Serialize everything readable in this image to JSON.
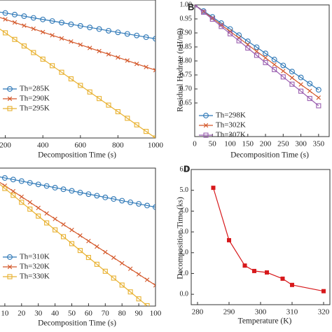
{
  "chart_data": [
    {
      "type": "line",
      "xlabel": "Decomposition Time (s)",
      "x": [
        0,
        50,
        100,
        150,
        200,
        250,
        300,
        350,
        400,
        450,
        500,
        550,
        600,
        650,
        700,
        750,
        800,
        850,
        900,
        950,
        1000
      ],
      "xlim": [
        0,
        1000
      ],
      "ylim": [
        0,
        1.05
      ],
      "xticks": [
        200,
        400,
        600,
        800,
        1000
      ],
      "series": [
        {
          "name": "Th=285K",
          "color": "#2e78b7",
          "values": [
            1,
            0.988,
            0.976,
            0.963,
            0.951,
            0.939,
            0.927,
            0.914,
            0.902,
            0.89,
            0.878,
            0.865,
            0.853,
            0.841,
            0.829,
            0.816,
            0.804,
            0.792,
            0.78,
            0.767,
            0.755
          ]
        },
        {
          "name": "Th=290K",
          "color": "#d4582a",
          "values": [
            1,
            0.976,
            0.952,
            0.927,
            0.903,
            0.879,
            0.855,
            0.831,
            0.806,
            0.782,
            0.758,
            0.734,
            0.71,
            0.685,
            0.661,
            0.637,
            0.613,
            0.589,
            0.564,
            0.54,
            0.516
          ]
        },
        {
          "name": "Th=295K",
          "color": "#e8b130",
          "values": [
            1,
            0.95,
            0.9,
            0.85,
            0.8,
            0.75,
            0.7,
            0.65,
            0.6,
            0.55,
            0.5,
            0.45,
            0.4,
            0.35,
            0.3,
            0.25,
            0.2,
            0.15,
            0.1,
            0.05,
            0
          ]
        }
      ]
    },
    {
      "type": "line",
      "panel_label": "B",
      "xlabel": "Decomposition Time (s)",
      "ylabel": "Residual Hydrate (nH/n0)",
      "x": [
        0,
        25,
        50,
        75,
        100,
        125,
        150,
        175,
        200,
        225,
        250,
        275,
        300,
        325,
        350
      ],
      "xlim": [
        0,
        380
      ],
      "ylim": [
        0.53,
        1.0
      ],
      "xticks": [
        0,
        50,
        100,
        150,
        200,
        250,
        300,
        350
      ],
      "yticks": [
        {
          "value": 0.65,
          "label": "0.65"
        },
        {
          "value": 0.7,
          "label": "0.70"
        },
        {
          "value": 0.75,
          "label": "0.75"
        },
        {
          "value": 0.8,
          "label": "0.80"
        },
        {
          "value": 0.85,
          "label": "0.85"
        },
        {
          "value": 0.9,
          "label": "0.90"
        },
        {
          "value": 0.95,
          "label": "0.95"
        },
        {
          "value": 1.0,
          "label": "1.00"
        }
      ],
      "series": [
        {
          "name": "Th=298K",
          "color": "#2e78b7",
          "values": [
            1,
            0.978,
            0.957,
            0.935,
            0.914,
            0.892,
            0.87,
            0.849,
            0.827,
            0.805,
            0.784,
            0.762,
            0.741,
            0.719,
            0.697
          ]
        },
        {
          "name": "Th=302K",
          "color": "#d4582a",
          "values": [
            1,
            0.976,
            0.953,
            0.929,
            0.905,
            0.882,
            0.858,
            0.834,
            0.811,
            0.787,
            0.764,
            0.74,
            0.716,
            0.693,
            0.669
          ]
        },
        {
          "name": "Th=307K",
          "color": "#9a5fb0",
          "values": [
            1,
            0.974,
            0.949,
            0.923,
            0.897,
            0.872,
            0.846,
            0.82,
            0.794,
            0.769,
            0.743,
            0.717,
            0.692,
            0.666,
            0.64
          ]
        }
      ]
    },
    {
      "type": "line",
      "xlabel": "Decomposition Time (s)",
      "x": [
        0,
        5,
        10,
        15,
        20,
        25,
        30,
        35,
        40,
        45,
        50,
        55,
        60,
        65,
        70,
        75,
        80,
        85,
        90,
        95,
        100
      ],
      "xlim": [
        0,
        100
      ],
      "ylim": [
        0,
        1.05
      ],
      "xticks": [
        10,
        20,
        30,
        40,
        50,
        60,
        70,
        80,
        90,
        100
      ],
      "series": [
        {
          "name": "Th=310K",
          "color": "#2e78b7",
          "values": [
            1,
            0.988,
            0.975,
            0.963,
            0.951,
            0.938,
            0.926,
            0.914,
            0.901,
            0.889,
            0.877,
            0.864,
            0.852,
            0.84,
            0.827,
            0.815,
            0.802,
            0.79,
            0.778,
            0.765,
            0.753
          ]
        },
        {
          "name": "Th=320K",
          "color": "#d4582a",
          "values": [
            1,
            0.958,
            0.916,
            0.874,
            0.832,
            0.79,
            0.747,
            0.705,
            0.663,
            0.621,
            0.579,
            0.537,
            0.495,
            0.453,
            0.411,
            0.369,
            0.326,
            0.284,
            0.242,
            0.2,
            0.158
          ]
        },
        {
          "name": "Th=330K",
          "color": "#e8b130",
          "values": [
            1,
            0.948,
            0.895,
            0.843,
            0.79,
            0.738,
            0.685,
            0.633,
            0.58,
            0.528,
            0.475,
            0.423,
            0.37,
            0.318,
            0.265,
            0.213,
            0.16,
            0.108,
            0.055,
            0.003,
            null
          ]
        }
      ]
    },
    {
      "type": "line",
      "panel_label": "D",
      "xlabel": "Temperature (K)",
      "ylabel": "Decomposition Time (ks)",
      "x": [
        285,
        290,
        295,
        298,
        302,
        307,
        310,
        320
      ],
      "xlim": [
        278,
        322
      ],
      "ylim": [
        -0.5,
        6.0
      ],
      "xticks": [
        280,
        290,
        300,
        310,
        320
      ],
      "yticks": [
        {
          "value": 0,
          "label": "0.0"
        },
        {
          "value": 1,
          "label": "1.0"
        },
        {
          "value": 2,
          "label": "2.0"
        },
        {
          "value": 3,
          "label": "3.0"
        },
        {
          "value": 4,
          "label": "4.0"
        },
        {
          "value": 5,
          "label": "5.0"
        },
        {
          "value": 6,
          "label": "6.0"
        }
      ],
      "series": [
        {
          "color": "#d7191c",
          "values": [
            5.12,
            2.6,
            1.38,
            1.12,
            1.05,
            0.75,
            0.45,
            0.15
          ]
        }
      ]
    }
  ]
}
